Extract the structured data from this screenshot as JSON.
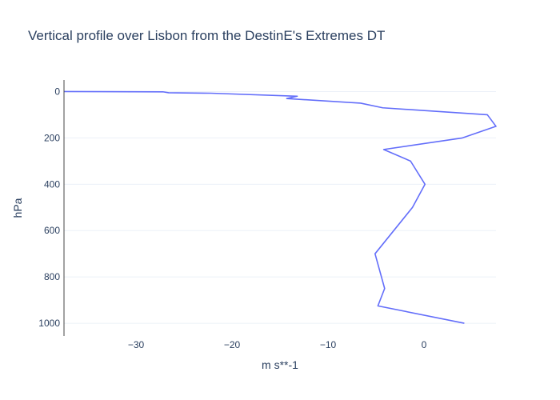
{
  "chart_data": {
    "type": "line",
    "title": "Vertical profile over Lisbon from the DestinE's Extremes DT",
    "xlabel": "m s**-1",
    "ylabel": "hPa",
    "xlim": [
      -37.5,
      7.5
    ],
    "ylim": [
      1055,
      -50
    ],
    "y_reversed": true,
    "grid": true,
    "x_ticks": [
      -30,
      -20,
      -10,
      0
    ],
    "x_tick_labels": [
      "−30",
      "−20",
      "−10",
      "0"
    ],
    "y_ticks": [
      0,
      200,
      400,
      600,
      800,
      1000
    ],
    "y_tick_labels": [
      "0",
      "200",
      "400",
      "600",
      "800",
      "1000"
    ],
    "series": [
      {
        "color": "#636efa",
        "x": [
          -37.5,
          -27.2,
          -26.6,
          -22.2,
          -13.2,
          -14.3,
          -6.6,
          -4.3,
          6.6,
          7.5,
          4.0,
          -4.2,
          -1.4,
          0.1,
          -1.2,
          -5.1,
          -4.1,
          -4.8,
          4.2
        ],
        "y": [
          0,
          1,
          5,
          7,
          20,
          30,
          50,
          70,
          100,
          150,
          200,
          250,
          300,
          400,
          500,
          700,
          850,
          925,
          1000
        ]
      }
    ]
  }
}
